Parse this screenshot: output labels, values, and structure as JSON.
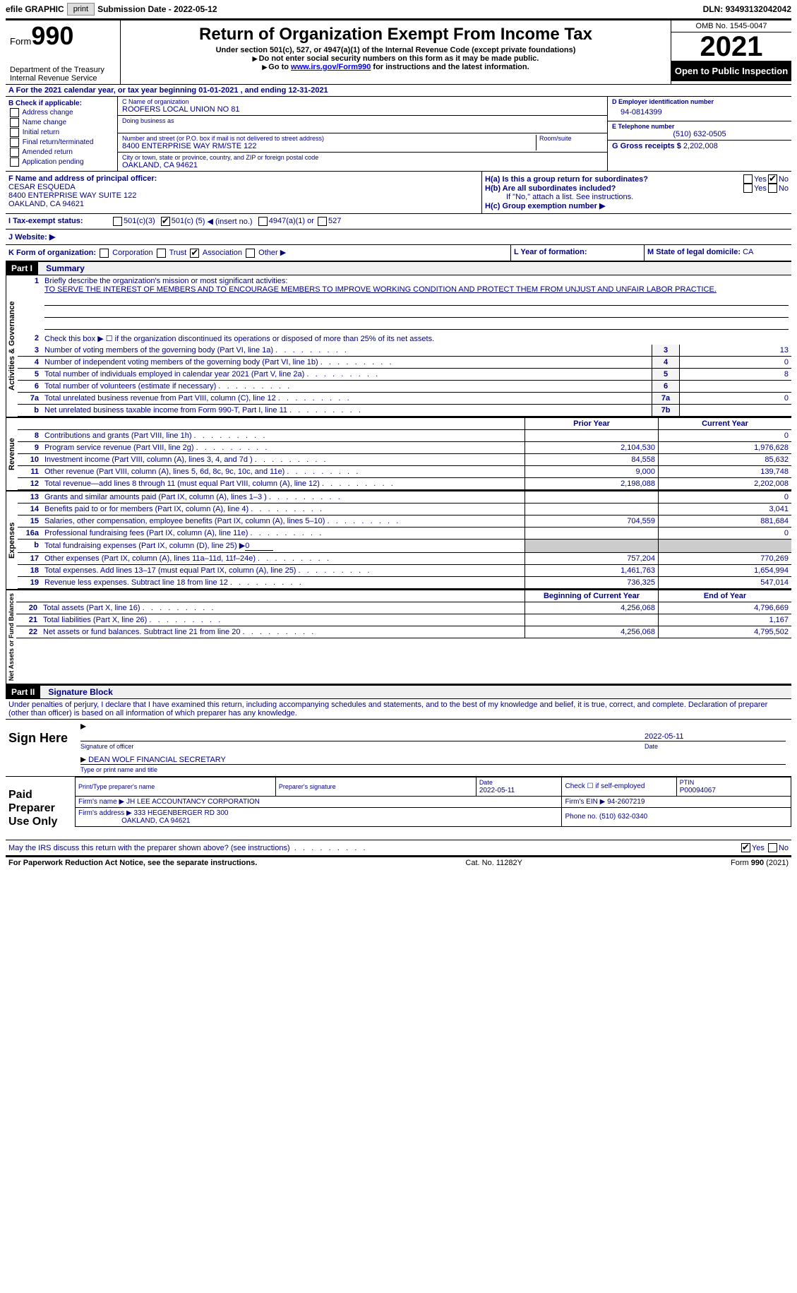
{
  "toolbar": {
    "efile_label": "efile GRAPHIC",
    "print_label": "print",
    "submission_prefix": "Submission Date - ",
    "submission_date": "2022-05-12",
    "dln_prefix": "DLN: ",
    "dln": "93493132042042"
  },
  "header": {
    "form_prefix": "Form",
    "form_number": "990",
    "title": "Return of Organization Exempt From Income Tax",
    "subtitle": "Under section 501(c), 527, or 4947(a)(1) of the Internal Revenue Code (except private foundations)",
    "instruction1": "Do not enter social security numbers on this form as it may be made public.",
    "instruction2_prefix": "Go to ",
    "instruction2_link": "www.irs.gov/Form990",
    "instruction2_suffix": " for instructions and the latest information.",
    "dept1": "Department of the Treasury",
    "dept2": "Internal Revenue Service",
    "omb": "OMB No. 1545-0047",
    "year": "2021",
    "open_public": "Open to Public Inspection"
  },
  "section_a": {
    "label": "A",
    "text_prefix": "For the 2021 calendar year, or tax year beginning ",
    "begin_date": "01-01-2021",
    "mid": " , and ending ",
    "end_date": "12-31-2021"
  },
  "section_b": {
    "label": "B Check if applicable:",
    "items": [
      "Address change",
      "Name change",
      "Initial return",
      "Final return/terminated",
      "Amended return",
      "Application pending"
    ]
  },
  "section_c": {
    "label": "C Name of organization",
    "name": "ROOFERS LOCAL UNION NO 81",
    "dba_label": "Doing business as",
    "street_label": "Number and street (or P.O. box if mail is not delivered to street address)",
    "room_label": "Room/suite",
    "street": "8400 ENTERPRISE WAY RM/STE 122",
    "city_label": "City or town, state or province, country, and ZIP or foreign postal code",
    "city": "OAKLAND, CA  94621"
  },
  "section_d": {
    "label": "D Employer identification number",
    "value": "94-0814399"
  },
  "section_e": {
    "label": "E Telephone number",
    "value": "(510) 632-0505"
  },
  "section_g": {
    "label": "G Gross receipts $ ",
    "value": "2,202,008"
  },
  "section_f": {
    "label": "F  Name and address of principal officer:",
    "name": "CESAR ESQUEDA",
    "addr1": "8400 ENTERPRISE WAY SUITE 122",
    "addr2": "OAKLAND, CA  94621"
  },
  "section_h": {
    "ha_label": "H(a)  Is this a group return for subordinates?",
    "hb_label": "H(b)  Are all subordinates included?",
    "hb_note": "If \"No,\" attach a list. See instructions.",
    "hc_label": "H(c)  Group exemption number ▶",
    "yes": "Yes",
    "no": "No"
  },
  "section_i": {
    "label": "I    Tax-exempt status:",
    "opt1": "501(c)(3)",
    "opt2_prefix": "501(c) ( ",
    "opt2_num": "5",
    "opt2_suffix": " ) ◀ (insert no.)",
    "opt3": "4947(a)(1) or",
    "opt4": "527"
  },
  "section_j": {
    "label": "J   Website: ▶"
  },
  "section_k": {
    "label": "K Form of organization:",
    "opts": [
      "Corporation",
      "Trust",
      "Association",
      "Other ▶"
    ]
  },
  "section_l": {
    "label": "L Year of formation:"
  },
  "section_m": {
    "label": "M State of legal domicile: ",
    "value": "CA"
  },
  "part1": {
    "header": "Part I",
    "title": "Summary",
    "line1_label": "Briefly describe the organization's mission or most significant activities:",
    "mission": "TO SERVE THE INTEREST OF MEMBERS AND TO ENCOURAGE MEMBERS TO IMPROVE WORKING CONDITION AND PROTECT THEM FROM UNJUST AND UNFAIR LABOR PRACTICE.",
    "line2": "Check this box ▶ ☐ if the organization discontinued its operations or disposed of more than 25% of its net assets.",
    "governance_label": "Activities & Governance",
    "revenue_label": "Revenue",
    "expenses_label": "Expenses",
    "netassets_label": "Net Assets or Fund Balances",
    "prior_year_header": "Prior Year",
    "current_year_header": "Current Year",
    "begin_year_header": "Beginning of Current Year",
    "end_year_header": "End of Year",
    "lines_gov": [
      {
        "n": "3",
        "text": "Number of voting members of the governing body (Part VI, line 1a)",
        "val": "13"
      },
      {
        "n": "4",
        "text": "Number of independent voting members of the governing body (Part VI, line 1b)",
        "val": "0"
      },
      {
        "n": "5",
        "text": "Total number of individuals employed in calendar year 2021 (Part V, line 2a)",
        "val": "8"
      },
      {
        "n": "6",
        "text": "Total number of volunteers (estimate if necessary)",
        "val": ""
      },
      {
        "n": "7a",
        "text": "Total unrelated business revenue from Part VIII, column (C), line 12",
        "val": "0"
      },
      {
        "n": "b",
        "text": "Net unrelated business taxable income from Form 990-T, Part I, line 11",
        "box": "7b",
        "val": ""
      }
    ],
    "lines_rev": [
      {
        "n": "8",
        "text": "Contributions and grants (Part VIII, line 1h)",
        "prior": "",
        "curr": "0"
      },
      {
        "n": "9",
        "text": "Program service revenue (Part VIII, line 2g)",
        "prior": "2,104,530",
        "curr": "1,976,628"
      },
      {
        "n": "10",
        "text": "Investment income (Part VIII, column (A), lines 3, 4, and 7d )",
        "prior": "84,558",
        "curr": "85,632"
      },
      {
        "n": "11",
        "text": "Other revenue (Part VIII, column (A), lines 5, 6d, 8c, 9c, 10c, and 11e)",
        "prior": "9,000",
        "curr": "139,748"
      },
      {
        "n": "12",
        "text": "Total revenue—add lines 8 through 11 (must equal Part VIII, column (A), line 12)",
        "prior": "2,198,088",
        "curr": "2,202,008"
      }
    ],
    "lines_exp": [
      {
        "n": "13",
        "text": "Grants and similar amounts paid (Part IX, column (A), lines 1–3 )",
        "prior": "",
        "curr": "0"
      },
      {
        "n": "14",
        "text": "Benefits paid to or for members (Part IX, column (A), line 4)",
        "prior": "",
        "curr": "3,041"
      },
      {
        "n": "15",
        "text": "Salaries, other compensation, employee benefits (Part IX, column (A), lines 5–10)",
        "prior": "704,559",
        "curr": "881,684"
      },
      {
        "n": "16a",
        "text": "Professional fundraising fees (Part IX, column (A), line 11e)",
        "prior": "",
        "curr": "0"
      },
      {
        "n": "b",
        "text": "Total fundraising expenses (Part IX, column (D), line 25) ▶",
        "underline": "0",
        "shaded": true
      },
      {
        "n": "17",
        "text": "Other expenses (Part IX, column (A), lines 11a–11d, 11f–24e)",
        "prior": "757,204",
        "curr": "770,269"
      },
      {
        "n": "18",
        "text": "Total expenses. Add lines 13–17 (must equal Part IX, column (A), line 25)",
        "prior": "1,461,763",
        "curr": "1,654,994"
      },
      {
        "n": "19",
        "text": "Revenue less expenses. Subtract line 18 from line 12",
        "prior": "736,325",
        "curr": "547,014"
      }
    ],
    "lines_net": [
      {
        "n": "20",
        "text": "Total assets (Part X, line 16)",
        "prior": "4,256,068",
        "curr": "4,796,669"
      },
      {
        "n": "21",
        "text": "Total liabilities (Part X, line 26)",
        "prior": "",
        "curr": "1,167"
      },
      {
        "n": "22",
        "text": "Net assets or fund balances. Subtract line 21 from line 20",
        "prior": "4,256,068",
        "curr": "4,795,502"
      }
    ]
  },
  "part2": {
    "header": "Part II",
    "title": "Signature Block",
    "declaration": "Under penalties of perjury, I declare that I have examined this return, including accompanying schedules and statements, and to the best of my knowledge and belief, it is true, correct, and complete. Declaration of preparer (other than officer) is based on all information of which preparer has any knowledge.",
    "sign_here": "Sign Here",
    "sig_officer": "Signature of officer",
    "sig_date": "2022-05-11",
    "date_label": "Date",
    "officer_name": "DEAN WOLF  FINANCIAL SECRETARY",
    "type_name_label": "Type or print name and title",
    "paid_preparer": "Paid Preparer Use Only",
    "prep_name_label": "Print/Type preparer's name",
    "prep_sig_label": "Preparer's signature",
    "prep_date_label": "Date",
    "prep_date": "2022-05-11",
    "check_if": "Check ☐ if self-employed",
    "ptin_label": "PTIN",
    "ptin": "P00094067",
    "firm_name_label": "Firm's name    ▶ ",
    "firm_name": "JH LEE ACCOUNTANCY CORPORATION",
    "firm_ein_label": "Firm's EIN ▶ ",
    "firm_ein": "94-2607219",
    "firm_addr_label": "Firm's address ▶ ",
    "firm_addr1": "333 HEGENBERGER RD 300",
    "firm_addr2": "OAKLAND, CA  94621",
    "phone_label": "Phone no. ",
    "phone": "(510) 632-0340",
    "discuss": "May the IRS discuss this return with the preparer shown above? (see instructions)",
    "yes": "Yes",
    "no": "No"
  },
  "footer": {
    "left": "For Paperwork Reduction Act Notice, see the separate instructions.",
    "mid": "Cat. No. 11282Y",
    "right_prefix": "Form ",
    "right_form": "990",
    "right_suffix": " (2021)"
  },
  "colors": {
    "text": "#000080",
    "black": "#000000",
    "link": "#0000ee",
    "shaded": "#cccccc"
  }
}
